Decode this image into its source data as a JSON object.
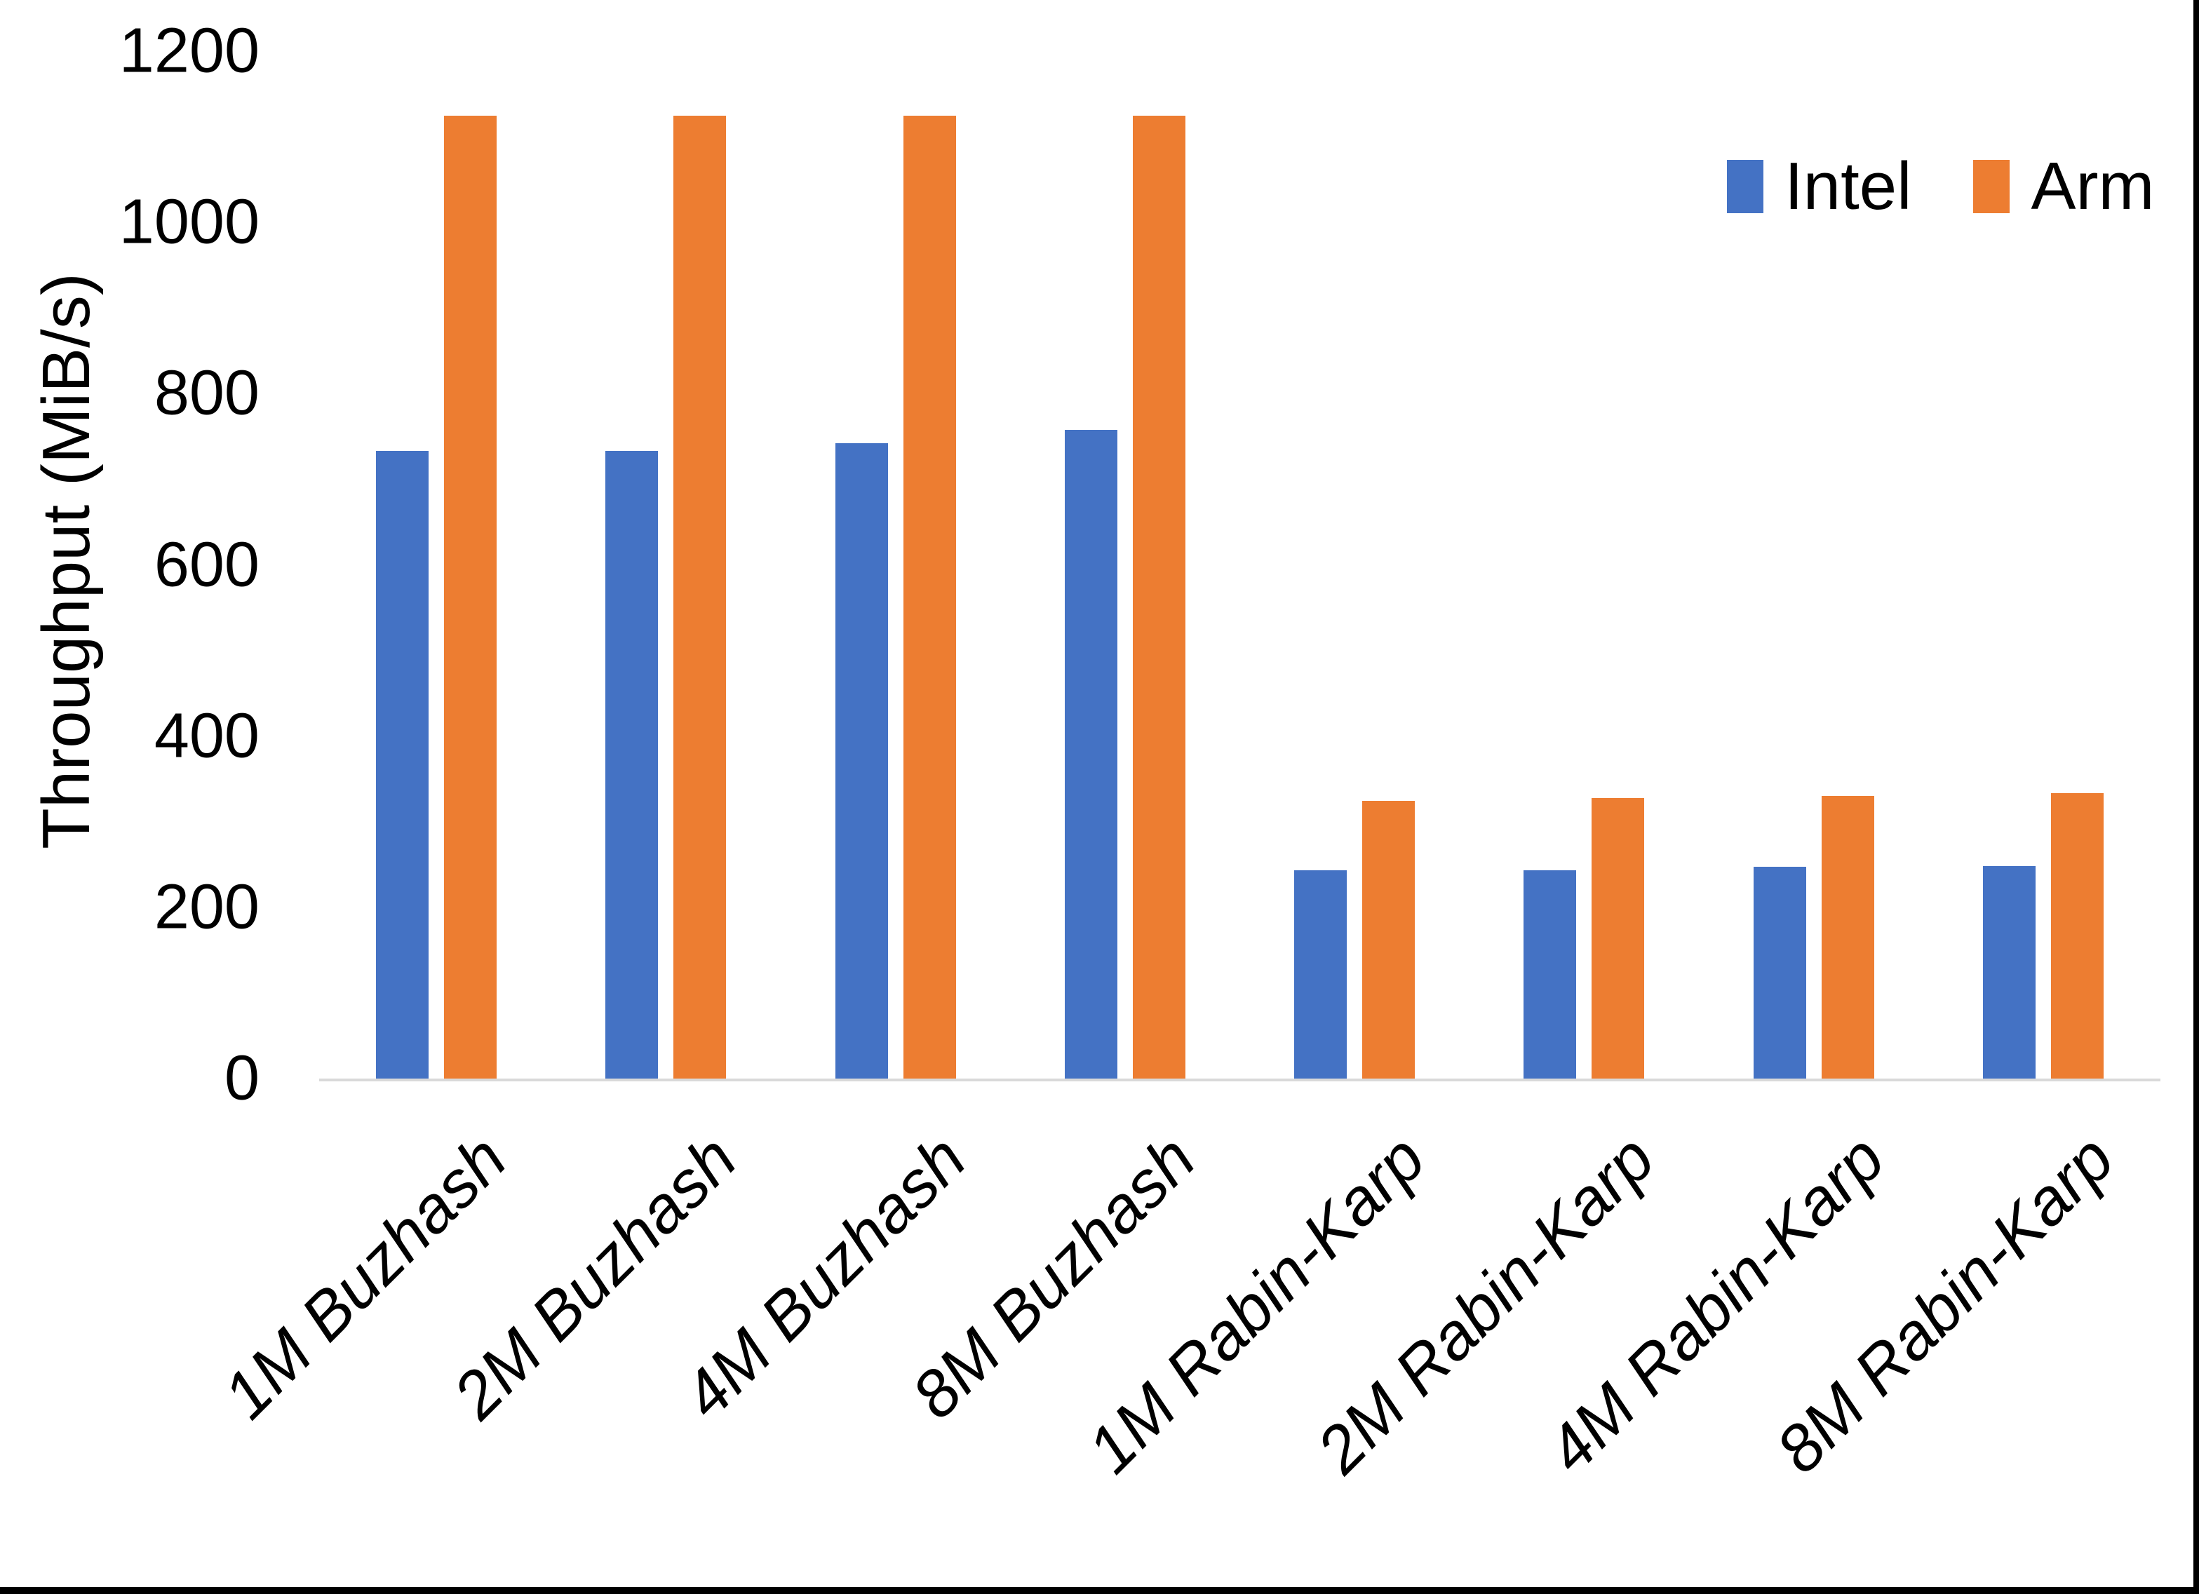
{
  "figure": {
    "background_color": "#ffffff",
    "border_color": "#000000"
  },
  "axis": {
    "baseline_color": "#d9d9d9",
    "text_color": "#000000"
  },
  "chart_data": {
    "type": "bar",
    "title": "",
    "xlabel": "",
    "ylabel": "Throughput (MiB/s)",
    "ylim": [
      0,
      1200
    ],
    "yticks": [
      0,
      200,
      400,
      600,
      800,
      1000,
      1200
    ],
    "grid": false,
    "legend_position": "top-right",
    "categories": [
      "1M Buzhash",
      "2M Buzhash",
      "4M Buzhash",
      "8M Buzhash",
      "1M Rabin-Karp",
      "2M Rabin-Karp",
      "4M Rabin-Karp",
      "8M Rabin-Karp"
    ],
    "series": [
      {
        "name": "Intel",
        "color": "#4472C4",
        "values": [
          735,
          735,
          744,
          759,
          245,
          245,
          249,
          250
        ]
      },
      {
        "name": "Arm",
        "color": "#ED7D31",
        "values": [
          1126,
          1126,
          1126,
          1126,
          326,
          329,
          332,
          335
        ]
      }
    ]
  }
}
